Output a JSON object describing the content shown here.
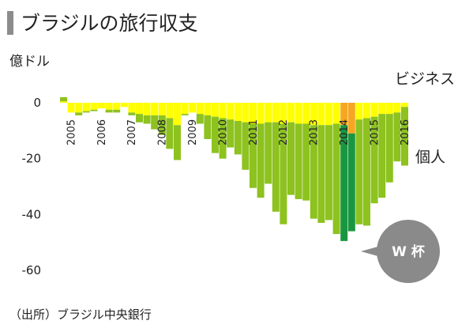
{
  "header": {
    "title": "ブラジルの旅行収支",
    "unit": "億ドル"
  },
  "footer": {
    "source": "（出所）ブラジル中央銀行"
  },
  "colors": {
    "business": "#ffff00",
    "business_highlight": "#f5a623",
    "personal": "#8dc21f",
    "personal_highlight": "#1a9641",
    "callout": "#8a8a8a",
    "text": "#222222"
  },
  "chart_data": {
    "type": "bar",
    "title": "ブラジルの旅行収支",
    "ylabel": "億ドル",
    "ylim": [
      -62,
      5
    ],
    "yticks": [
      0,
      -20,
      -40,
      -60
    ],
    "grid": false,
    "year_labels": [
      "2005",
      "2006",
      "2007",
      "2008",
      "2009",
      "2010",
      "2011",
      "2012",
      "2013",
      "2014",
      "2015",
      "2016"
    ],
    "categories": [
      "2005Q1",
      "2005Q2",
      "2005Q3",
      "2005Q4",
      "2006Q1",
      "2006Q2",
      "2006Q3",
      "2006Q4",
      "2007Q1",
      "2007Q2",
      "2007Q3",
      "2007Q4",
      "2008Q1",
      "2008Q2",
      "2008Q3",
      "2008Q4",
      "2009Q1",
      "2009Q2",
      "2009Q3",
      "2009Q4",
      "2010Q1",
      "2010Q2",
      "2010Q3",
      "2010Q4",
      "2011Q1",
      "2011Q2",
      "2011Q3",
      "2011Q4",
      "2012Q1",
      "2012Q2",
      "2012Q3",
      "2012Q4",
      "2013Q1",
      "2013Q2",
      "2013Q3",
      "2013Q4",
      "2014Q1",
      "2014Q2",
      "2014Q3",
      "2014Q4",
      "2015Q1",
      "2015Q2",
      "2015Q3",
      "2015Q4",
      "2016Q1",
      "2016Q2"
    ],
    "highlight": [
      "2014Q2",
      "2014Q3"
    ],
    "series": [
      {
        "name": "ビジネス",
        "values": [
          0.5,
          -3.5,
          -3.5,
          -3,
          -2.5,
          -2,
          -2.5,
          -2.5,
          -1.5,
          -3.5,
          -4,
          -4.5,
          -4.5,
          -4.5,
          -5.5,
          -8,
          -4,
          -3.5,
          -4,
          -4.5,
          -5,
          -5.5,
          -6,
          -6.5,
          -7,
          -7.5,
          -7.5,
          -7,
          -7,
          -7.5,
          -7,
          -7.5,
          -7.5,
          -8,
          -8,
          -8,
          -7.5,
          -8,
          -11,
          -6,
          -5.5,
          -5,
          -4,
          -4,
          -3.5,
          -1.5
        ]
      },
      {
        "name": "個人",
        "values": [
          1.5,
          0,
          -1,
          -0.5,
          -0.5,
          0,
          -1,
          -1,
          0,
          -1,
          -3,
          -3,
          -5,
          -7,
          -11,
          -12.5,
          -0.5,
          0,
          -3.5,
          -8.5,
          -13,
          -14.5,
          -10,
          -12,
          -17,
          -23,
          -26.5,
          -22,
          -32,
          -36,
          -26,
          -27,
          -27.5,
          -33.5,
          -35,
          -34,
          -39.5,
          -41.5,
          -35,
          -37.5,
          -38.5,
          -31,
          -30,
          -24.5,
          -17.5,
          -21
        ]
      }
    ],
    "annotations": [
      "W 杯"
    ]
  }
}
